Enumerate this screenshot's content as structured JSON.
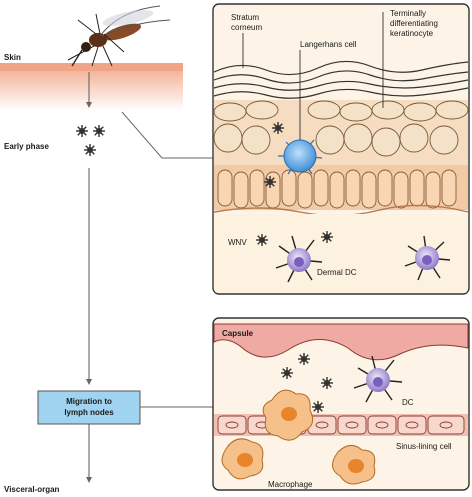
{
  "left_labels": {
    "skin": "Skin",
    "early_phase": "Early phase",
    "migration_line1": "Migration to",
    "migration_line2": "lymph nodes",
    "visceral": "Visceral-organ"
  },
  "skin_panel": {
    "stratum_line1": "Stratum",
    "stratum_line2": "corneum",
    "langerhans": "Langerhans cell",
    "terminal_line1": "Terminally",
    "terminal_line2": "differentiating",
    "terminal_line3": "keratinocyte",
    "wnv": "WNV",
    "dermal_dc": "Dermal DC"
  },
  "lymph_panel": {
    "capsule": "Capsule",
    "dc": "DC",
    "sinus": "Sinus-lining cell",
    "macrophage": "Macrophage"
  },
  "colors": {
    "skin_bar": "#f2a489",
    "cell_fill": "#f3dcc4",
    "langerhans_cell": "#5aa3e0",
    "dc_cell": "#a998d4",
    "macrophage": "#f0a452",
    "migration_box": "#9fd3ef",
    "capsule": "#e8a0a0"
  }
}
